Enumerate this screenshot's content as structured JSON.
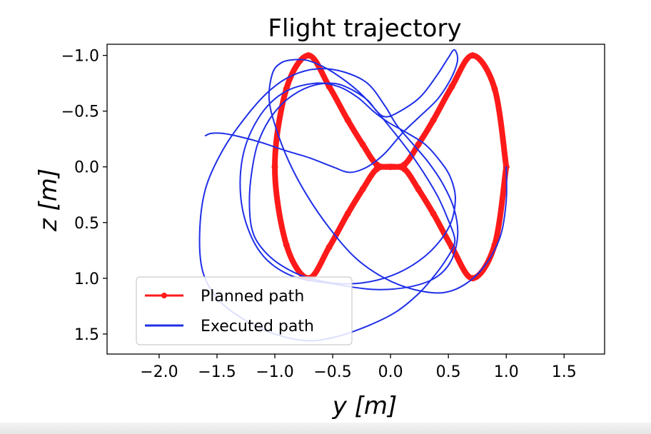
{
  "chart_data": {
    "type": "line",
    "title": "Flight trajectory",
    "xlabel": "y [m]",
    "ylabel": "z [m]",
    "xlim": [
      -2.45,
      1.85
    ],
    "ylim": [
      1.68,
      -1.1
    ],
    "y_axis_inverted": true,
    "xticks": [
      -2.0,
      -1.5,
      -1.0,
      -0.5,
      0.0,
      0.5,
      1.0,
      1.5
    ],
    "xtick_labels": [
      "−2.0",
      "−1.5",
      "−1.0",
      "−0.5",
      "0.0",
      "0.5",
      "1.0",
      "1.5"
    ],
    "yticks": [
      -1.0,
      -0.5,
      0.0,
      0.5,
      1.0,
      1.5
    ],
    "ytick_labels": [
      "−1.0",
      "−0.5",
      "0.0",
      "0.5",
      "1.0",
      "1.5"
    ],
    "grid": false,
    "legend_position": "lower-left",
    "series": [
      {
        "name": "Planned path",
        "color": "#ff1a1a",
        "marker": "dot",
        "x": [
          1.0,
          0.9,
          0.71,
          0.53,
          0.37,
          0.24,
          0.12,
          0.0,
          -0.12,
          -0.24,
          -0.37,
          -0.53,
          -0.71,
          -0.9,
          -1.0,
          -0.9,
          -0.71,
          -0.53,
          -0.37,
          -0.24,
          -0.12,
          0.0,
          0.12,
          0.24,
          0.37,
          0.53,
          0.71,
          0.9,
          1.0
        ],
        "y": [
          0.0,
          -0.7,
          -1.0,
          -0.72,
          -0.42,
          -0.2,
          -0.02,
          0.0,
          0.02,
          0.2,
          0.42,
          0.72,
          1.0,
          0.7,
          0.0,
          -0.7,
          -1.0,
          -0.72,
          -0.42,
          -0.2,
          -0.02,
          0.0,
          0.02,
          0.2,
          0.42,
          0.72,
          1.0,
          0.7,
          0.0
        ]
      },
      {
        "name": "Executed path",
        "color": "#1f2fe8",
        "marker": "none",
        "x": [
          1.0,
          1.0,
          0.95,
          0.82,
          0.65,
          0.45,
          0.2,
          -0.05,
          -0.3,
          -0.52,
          -0.72,
          -0.88,
          -1.0,
          -1.05,
          -1.02,
          -0.95,
          -0.85,
          -0.7,
          -0.5,
          -0.25,
          0.0,
          0.22,
          0.4,
          0.5,
          0.55,
          0.55,
          0.5,
          0.4,
          0.25,
          0.05,
          -0.18,
          -0.45,
          -0.72,
          -1.0,
          -1.25,
          -1.48,
          -1.62,
          -1.65,
          -1.6,
          -1.45,
          -1.25,
          -1.05,
          -0.85,
          -0.62,
          -0.4,
          -0.2,
          -0.05,
          0.05,
          0.18,
          0.32,
          0.45,
          0.55,
          0.58,
          0.52,
          0.38,
          0.15,
          -0.15,
          -0.5,
          -0.85,
          -1.1,
          -1.25,
          -1.3,
          -1.25,
          -1.1,
          -0.9,
          -0.65,
          -0.45,
          -0.28,
          -0.15,
          -0.02,
          0.15,
          0.3,
          0.43,
          0.52,
          0.56,
          0.5,
          0.3,
          0.0,
          -0.35,
          -0.7,
          -0.95,
          -1.12,
          -1.2,
          -1.22,
          -1.2,
          -1.15,
          -1.05,
          -0.9,
          -0.7,
          -0.5,
          -0.35,
          -0.2,
          -0.12,
          -0.05,
          0.05,
          0.25,
          0.4,
          0.5,
          0.55,
          0.58,
          0.56,
          0.5,
          0.4,
          0.25,
          0.1,
          -0.05,
          -0.2,
          -0.35,
          -0.5,
          -0.7,
          -0.92,
          -1.12,
          -1.3,
          -1.45,
          -1.55,
          -1.6
        ],
        "y": [
          0.0,
          0.3,
          0.62,
          0.88,
          1.05,
          1.13,
          1.1,
          1.0,
          0.82,
          0.56,
          0.26,
          -0.05,
          -0.38,
          -0.62,
          -0.84,
          -0.93,
          -0.96,
          -0.95,
          -0.85,
          -0.65,
          -0.35,
          -0.05,
          0.25,
          0.48,
          0.62,
          0.7,
          0.8,
          0.95,
          1.13,
          1.3,
          1.42,
          1.52,
          1.56,
          1.5,
          1.38,
          1.2,
          0.95,
          0.6,
          0.2,
          -0.15,
          -0.45,
          -0.68,
          -0.82,
          -0.88,
          -0.85,
          -0.75,
          -0.55,
          -0.38,
          -0.22,
          -0.05,
          0.15,
          0.38,
          0.62,
          0.85,
          1.0,
          1.08,
          1.1,
          1.05,
          0.98,
          0.8,
          0.5,
          0.15,
          -0.2,
          -0.5,
          -0.68,
          -0.75,
          -0.72,
          -0.62,
          -0.5,
          -0.4,
          -0.3,
          -0.2,
          -0.05,
          0.1,
          0.3,
          0.55,
          0.8,
          0.98,
          1.05,
          1.0,
          0.88,
          0.72,
          0.55,
          0.3,
          0.05,
          -0.2,
          -0.42,
          -0.6,
          -0.72,
          -0.75,
          -0.7,
          -0.6,
          -0.5,
          -0.45,
          -0.48,
          -0.62,
          -0.82,
          -0.98,
          -1.05,
          -0.98,
          -0.88,
          -0.75,
          -0.6,
          -0.45,
          -0.3,
          -0.12,
          0.0,
          0.05,
          0.0,
          -0.08,
          -0.15,
          -0.22,
          -0.27,
          -0.3,
          -0.3,
          -0.28
        ]
      }
    ]
  }
}
